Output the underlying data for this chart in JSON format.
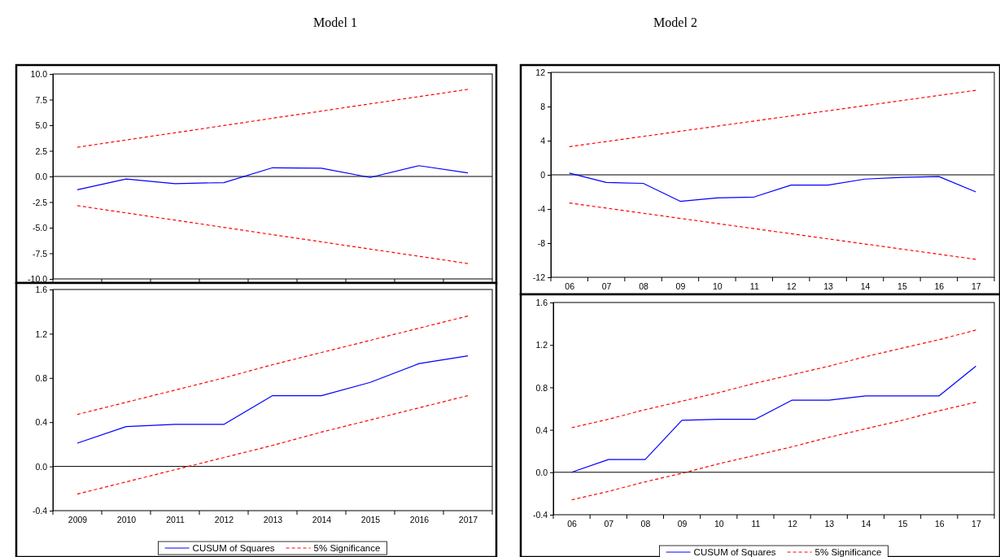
{
  "chart_data": [
    {
      "type": "line",
      "title": "Model 1",
      "categories": [
        null,
        null,
        null,
        null,
        null,
        null,
        null,
        null,
        null
      ],
      "tick_labels": "y",
      "ylim": [
        -10,
        10
      ],
      "yticks": [
        {
          "value": -10,
          "label": "-10.0"
        },
        {
          "value": -7.5,
          "label": "-7.5"
        },
        {
          "value": -5,
          "label": "-5.0"
        },
        {
          "value": -2.5,
          "label": "-2.5"
        },
        {
          "value": 0,
          "label": "0.0"
        },
        {
          "value": 2.5,
          "label": "2.5"
        },
        {
          "value": 5,
          "label": "5.0"
        },
        {
          "value": 7.5,
          "label": "7.5"
        },
        {
          "value": 10,
          "label": "10.0"
        }
      ],
      "grid": false,
      "legend": false,
      "ref_lines": [
        {
          "axis": "y",
          "value": 0,
          "color": "#000000"
        }
      ],
      "series": [
        {
          "color": "#0000ff",
          "line_style": "solid",
          "values": [
            -1.3,
            -0.25,
            -0.7,
            -0.6,
            0.85,
            0.8,
            -0.1,
            1.05,
            0.35
          ]
        },
        {
          "color": "#ff0000",
          "line_style": "dashed",
          "values": [
            2.85,
            3.56,
            4.26,
            4.97,
            5.68,
            6.38,
            7.09,
            7.79,
            8.5
          ]
        },
        {
          "color": "#ff0000",
          "line_style": "dashed",
          "values": [
            -2.85,
            -3.56,
            -4.26,
            -4.97,
            -5.68,
            -6.38,
            -7.09,
            -7.79,
            -8.5
          ]
        }
      ]
    },
    {
      "type": "line",
      "title": "Model 2",
      "categories": [
        "06",
        "07",
        "08",
        "09",
        "10",
        "11",
        "12",
        "13",
        "14",
        "15",
        "16",
        "17"
      ],
      "ylim": [
        -12,
        12
      ],
      "yticks": [
        -12,
        -8,
        -4,
        0,
        4,
        8,
        12
      ],
      "grid": false,
      "legend": false,
      "ref_lines": [
        {
          "axis": "y",
          "value": 0,
          "color": "#000000"
        }
      ],
      "series": [
        {
          "color": "#0000ff",
          "line_style": "solid",
          "values": [
            0.2,
            -0.9,
            -1.0,
            -3.1,
            -2.7,
            -2.6,
            -1.2,
            -1.2,
            -0.5,
            -0.3,
            -0.2,
            -2.0
          ]
        },
        {
          "color": "#ff0000",
          "line_style": "dashed",
          "values": [
            3.3,
            3.9,
            4.5,
            5.1,
            5.7,
            6.3,
            6.9,
            7.5,
            8.1,
            8.7,
            9.3,
            9.9
          ]
        },
        {
          "color": "#ff0000",
          "line_style": "dashed",
          "values": [
            -3.3,
            -3.9,
            -4.5,
            -5.1,
            -5.7,
            -6.3,
            -6.9,
            -7.5,
            -8.1,
            -8.7,
            -9.3,
            -9.9
          ]
        }
      ]
    },
    {
      "type": "line",
      "categories": [
        "2009",
        "2010",
        "2011",
        "2012",
        "2013",
        "2014",
        "2015",
        "2016",
        "2017"
      ],
      "ylim": [
        -0.4,
        1.6
      ],
      "yticks": [
        -0.4,
        {
          "value": 0,
          "label": "0.0"
        },
        0.4,
        0.8,
        1.2,
        1.6
      ],
      "grid": false,
      "legend": "bottom",
      "ref_lines": [
        {
          "axis": "y",
          "value": 0,
          "color": "#000000"
        }
      ],
      "series": [
        {
          "name": "CUSUM of Squares",
          "color": "#0000ff",
          "line_style": "solid",
          "values": [
            0.21,
            0.36,
            0.38,
            0.38,
            0.64,
            0.64,
            0.76,
            0.93,
            1.0
          ]
        },
        {
          "name": "5% Significance",
          "color": "#ff0000",
          "line_style": "dashed",
          "values": [
            0.47,
            0.58,
            0.69,
            0.8,
            0.92,
            1.03,
            1.14,
            1.25,
            1.36
          ]
        },
        {
          "color": "#ff0000",
          "line_style": "dashed",
          "values": [
            -0.25,
            -0.14,
            -0.03,
            0.08,
            0.19,
            0.31,
            0.42,
            0.53,
            0.64
          ]
        }
      ]
    },
    {
      "type": "line",
      "categories": [
        "06",
        "07",
        "08",
        "09",
        "10",
        "11",
        "12",
        "13",
        "14",
        "15",
        "16",
        "17"
      ],
      "ylim": [
        -0.4,
        1.6
      ],
      "yticks": [
        -0.4,
        {
          "value": 0,
          "label": "0.0"
        },
        0.4,
        0.8,
        1.2,
        1.6
      ],
      "grid": false,
      "legend": "bottom",
      "ref_lines": [
        {
          "axis": "y",
          "value": 0,
          "color": "#000000"
        }
      ],
      "series": [
        {
          "name": "CUSUM of Squares",
          "color": "#0000ff",
          "line_style": "solid",
          "values": [
            0.0,
            0.12,
            0.12,
            0.49,
            0.5,
            0.5,
            0.68,
            0.68,
            0.72,
            0.72,
            0.72,
            1.0
          ]
        },
        {
          "name": "5% Significance",
          "color": "#ff0000",
          "line_style": "dashed",
          "values": [
            0.42,
            0.5,
            0.59,
            0.67,
            0.75,
            0.84,
            0.92,
            1.0,
            1.09,
            1.17,
            1.25,
            1.34
          ]
        },
        {
          "color": "#ff0000",
          "line_style": "dashed",
          "values": [
            -0.26,
            -0.18,
            -0.09,
            -0.01,
            0.08,
            0.16,
            0.24,
            0.33,
            0.41,
            0.49,
            0.58,
            0.66
          ]
        }
      ]
    }
  ]
}
